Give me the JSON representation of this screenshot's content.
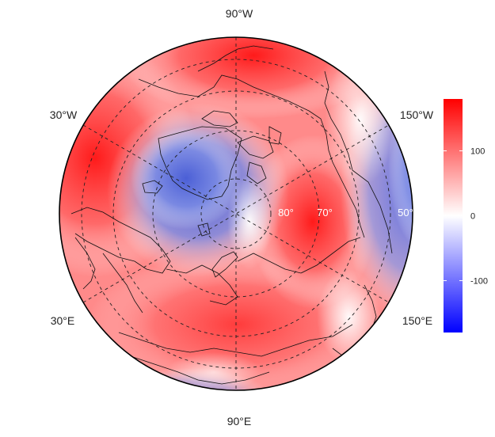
{
  "map": {
    "projection": "north-polar-orthographic",
    "longitude_labels": [
      {
        "name": "lon-90w",
        "text": "90°W"
      },
      {
        "name": "lon-30w",
        "text": "30°W"
      },
      {
        "name": "lon-150w",
        "text": "150°W"
      },
      {
        "name": "lon-30e",
        "text": "30°E"
      },
      {
        "name": "lon-150e",
        "text": "150°E"
      },
      {
        "name": "lon-90e",
        "text": "90°E"
      }
    ],
    "latitude_labels": [
      "80°",
      "70°",
      "50°"
    ],
    "field": {
      "description_colors": {
        "negative": "#0000ff",
        "zero": "#ffffff",
        "positive": "#ff0000"
      },
      "pattern": "wave-number-3 anomaly"
    }
  },
  "colorbar": {
    "min": -180,
    "max": 180,
    "ticks": [
      {
        "value": 100,
        "label": "100"
      },
      {
        "value": 0,
        "label": "0"
      },
      {
        "value": -100,
        "label": "-100"
      }
    ],
    "colors": [
      "#0000ff",
      "#ffffff",
      "#ff0000"
    ]
  }
}
